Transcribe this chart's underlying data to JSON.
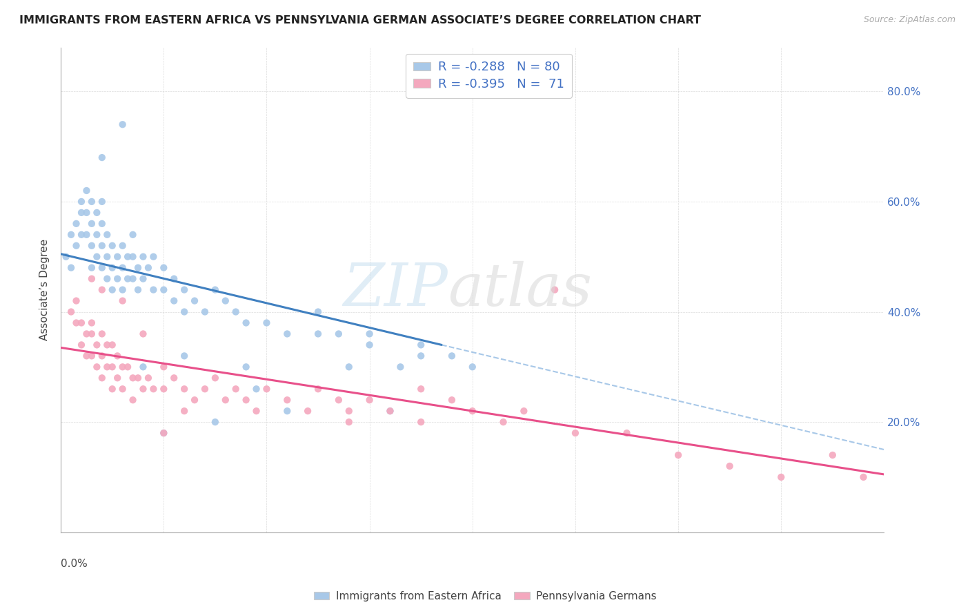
{
  "title": "IMMIGRANTS FROM EASTERN AFRICA VS PENNSYLVANIA GERMAN ASSOCIATE’S DEGREE CORRELATION CHART",
  "source": "Source: ZipAtlas.com",
  "ylabel": "Associate’s Degree",
  "right_yticks": [
    "80.0%",
    "60.0%",
    "40.0%",
    "20.0%"
  ],
  "right_ytick_vals": [
    0.8,
    0.6,
    0.4,
    0.2
  ],
  "blue_color": "#a8c8e8",
  "pink_color": "#f4a8be",
  "blue_line_color": "#4080c0",
  "pink_line_color": "#e8508a",
  "dashed_line_color": "#a8c8e8",
  "legend_label1": "Immigrants from Eastern Africa",
  "legend_label2": "Pennsylvania Germans",
  "blue_scatter_x": [
    0.005,
    0.01,
    0.01,
    0.015,
    0.015,
    0.02,
    0.02,
    0.02,
    0.025,
    0.025,
    0.025,
    0.03,
    0.03,
    0.03,
    0.03,
    0.035,
    0.035,
    0.035,
    0.04,
    0.04,
    0.04,
    0.04,
    0.045,
    0.045,
    0.045,
    0.05,
    0.05,
    0.05,
    0.055,
    0.055,
    0.06,
    0.06,
    0.06,
    0.065,
    0.065,
    0.07,
    0.07,
    0.07,
    0.075,
    0.075,
    0.08,
    0.08,
    0.085,
    0.09,
    0.09,
    0.1,
    0.1,
    0.11,
    0.11,
    0.12,
    0.12,
    0.13,
    0.14,
    0.15,
    0.16,
    0.17,
    0.18,
    0.2,
    0.22,
    0.25,
    0.27,
    0.3,
    0.33,
    0.35,
    0.38,
    0.4,
    0.12,
    0.08,
    0.25,
    0.18,
    0.3,
    0.35,
    0.22,
    0.19,
    0.28,
    0.32,
    0.15,
    0.1,
    0.06,
    0.04
  ],
  "blue_scatter_y": [
    0.5,
    0.54,
    0.48,
    0.56,
    0.52,
    0.6,
    0.58,
    0.54,
    0.62,
    0.58,
    0.54,
    0.6,
    0.56,
    0.52,
    0.48,
    0.58,
    0.54,
    0.5,
    0.6,
    0.56,
    0.52,
    0.48,
    0.54,
    0.5,
    0.46,
    0.52,
    0.48,
    0.44,
    0.5,
    0.46,
    0.52,
    0.48,
    0.44,
    0.5,
    0.46,
    0.54,
    0.5,
    0.46,
    0.48,
    0.44,
    0.5,
    0.46,
    0.48,
    0.5,
    0.44,
    0.48,
    0.44,
    0.46,
    0.42,
    0.44,
    0.4,
    0.42,
    0.4,
    0.44,
    0.42,
    0.4,
    0.38,
    0.38,
    0.36,
    0.4,
    0.36,
    0.34,
    0.3,
    0.34,
    0.32,
    0.3,
    0.32,
    0.3,
    0.36,
    0.3,
    0.36,
    0.32,
    0.22,
    0.26,
    0.3,
    0.22,
    0.2,
    0.18,
    0.74,
    0.68
  ],
  "pink_scatter_x": [
    0.01,
    0.015,
    0.015,
    0.02,
    0.02,
    0.025,
    0.025,
    0.03,
    0.03,
    0.03,
    0.035,
    0.035,
    0.04,
    0.04,
    0.04,
    0.045,
    0.045,
    0.05,
    0.05,
    0.05,
    0.055,
    0.055,
    0.06,
    0.06,
    0.065,
    0.07,
    0.07,
    0.075,
    0.08,
    0.085,
    0.09,
    0.1,
    0.1,
    0.11,
    0.12,
    0.13,
    0.14,
    0.15,
    0.16,
    0.17,
    0.18,
    0.19,
    0.2,
    0.22,
    0.24,
    0.25,
    0.27,
    0.28,
    0.3,
    0.32,
    0.35,
    0.38,
    0.4,
    0.43,
    0.45,
    0.5,
    0.55,
    0.6,
    0.65,
    0.7,
    0.75,
    0.78,
    0.08,
    0.06,
    0.04,
    0.03,
    0.12,
    0.1,
    0.28,
    0.35,
    0.48
  ],
  "pink_scatter_y": [
    0.4,
    0.38,
    0.42,
    0.38,
    0.34,
    0.36,
    0.32,
    0.38,
    0.36,
    0.32,
    0.34,
    0.3,
    0.36,
    0.32,
    0.28,
    0.34,
    0.3,
    0.34,
    0.3,
    0.26,
    0.32,
    0.28,
    0.3,
    0.26,
    0.3,
    0.28,
    0.24,
    0.28,
    0.26,
    0.28,
    0.26,
    0.3,
    0.26,
    0.28,
    0.26,
    0.24,
    0.26,
    0.28,
    0.24,
    0.26,
    0.24,
    0.22,
    0.26,
    0.24,
    0.22,
    0.26,
    0.24,
    0.22,
    0.24,
    0.22,
    0.26,
    0.24,
    0.22,
    0.2,
    0.22,
    0.18,
    0.18,
    0.14,
    0.12,
    0.1,
    0.14,
    0.1,
    0.36,
    0.42,
    0.44,
    0.46,
    0.22,
    0.18,
    0.2,
    0.2,
    0.44
  ],
  "blue_line_x0": 0.0,
  "blue_line_x1": 0.37,
  "blue_line_y0": 0.505,
  "blue_line_y1": 0.34,
  "dashed_line_x0": 0.37,
  "dashed_line_x1": 0.8,
  "dashed_line_y0": 0.34,
  "dashed_line_y1": 0.15,
  "pink_line_x0": 0.0,
  "pink_line_x1": 0.8,
  "pink_line_y0": 0.335,
  "pink_line_y1": 0.105,
  "xlim": [
    0.0,
    0.8
  ],
  "ylim": [
    0.0,
    0.88
  ]
}
